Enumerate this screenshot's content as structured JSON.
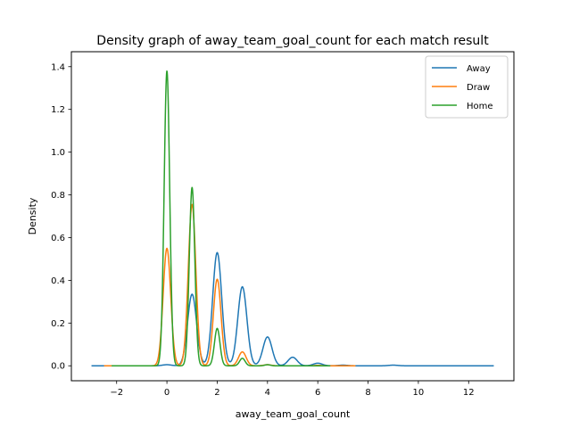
{
  "chart_data": {
    "type": "line",
    "title": "Density graph of away_team_goal_count for each match result",
    "xlabel": "away_team_goal_count",
    "ylabel": "Density",
    "xlim": [
      -3.8,
      13.8
    ],
    "ylim": [
      -0.07,
      1.47
    ],
    "xticks": [
      -2,
      0,
      2,
      4,
      6,
      8,
      10,
      12
    ],
    "yticks": [
      0.0,
      0.2,
      0.4,
      0.6,
      0.8,
      1.0,
      1.2,
      1.4
    ],
    "xtick_labels": [
      "−2",
      "0",
      "2",
      "4",
      "6",
      "8",
      "10",
      "12"
    ],
    "ytick_labels": [
      "0.0",
      "0.2",
      "0.4",
      "0.6",
      "0.8",
      "1.0",
      "1.2",
      "1.4"
    ],
    "grid": false,
    "legend_position": "top-right",
    "series": [
      {
        "name": "Away",
        "color": "#1f77b4",
        "x_range": [
          -3,
          13
        ],
        "kde_sigma": 0.18,
        "peaks": [
          [
            0,
            0.005
          ],
          [
            1,
            0.335
          ],
          [
            2,
            0.53
          ],
          [
            3,
            0.37
          ],
          [
            4,
            0.135
          ],
          [
            5,
            0.04
          ],
          [
            6,
            0.012
          ],
          [
            7,
            0.003
          ],
          [
            9,
            0.003
          ]
        ]
      },
      {
        "name": "Draw",
        "color": "#ff7f0e",
        "x_range": [
          -2.5,
          7.5
        ],
        "kde_sigma": 0.15,
        "peaks": [
          [
            0,
            0.55
          ],
          [
            1,
            0.755
          ],
          [
            2,
            0.405
          ],
          [
            3,
            0.065
          ],
          [
            4,
            0.005
          ],
          [
            6,
            0.002
          ]
        ]
      },
      {
        "name": "Home",
        "color": "#2ca02c",
        "x_range": [
          -2.2,
          6.5
        ],
        "kde_sigma": 0.11,
        "peaks": [
          [
            0,
            1.38
          ],
          [
            1,
            0.835
          ],
          [
            2,
            0.175
          ],
          [
            3,
            0.035
          ],
          [
            4,
            0.005
          ]
        ]
      }
    ]
  }
}
